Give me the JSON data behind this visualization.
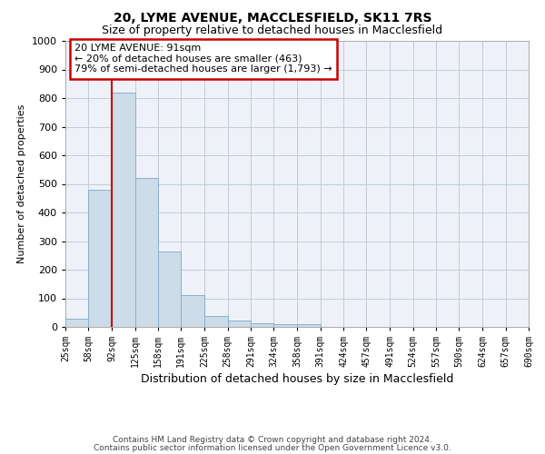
{
  "title1": "20, LYME AVENUE, MACCLESFIELD, SK11 7RS",
  "title2": "Size of property relative to detached houses in Macclesfield",
  "xlabel": "Distribution of detached houses by size in Macclesfield",
  "ylabel": "Number of detached properties",
  "bin_edges": [
    25,
    58,
    92,
    125,
    158,
    191,
    225,
    258,
    291,
    324,
    358,
    391,
    424,
    457,
    491,
    524,
    557,
    590,
    624,
    657,
    690
  ],
  "bar_heights": [
    30,
    480,
    820,
    520,
    265,
    110,
    38,
    22,
    12,
    8,
    8,
    0,
    0,
    0,
    0,
    0,
    0,
    0,
    0,
    0
  ],
  "bar_color": "#ccdce8",
  "bar_edge_color": "#8ab0cc",
  "property_size": 91,
  "vline_color": "#cc0000",
  "annotation_line1": "20 LYME AVENUE: 91sqm",
  "annotation_line2": "← 20% of detached houses are smaller (463)",
  "annotation_line3": "79% of semi-detached houses are larger (1,793) →",
  "annotation_box_color": "#cc0000",
  "ylim": [
    0,
    1000
  ],
  "yticks": [
    0,
    100,
    200,
    300,
    400,
    500,
    600,
    700,
    800,
    900,
    1000
  ],
  "footer1": "Contains HM Land Registry data © Crown copyright and database right 2024.",
  "footer2": "Contains public sector information licensed under the Open Government Licence v3.0.",
  "background_color": "#eef2f8",
  "grid_color": "#c0ccd8"
}
